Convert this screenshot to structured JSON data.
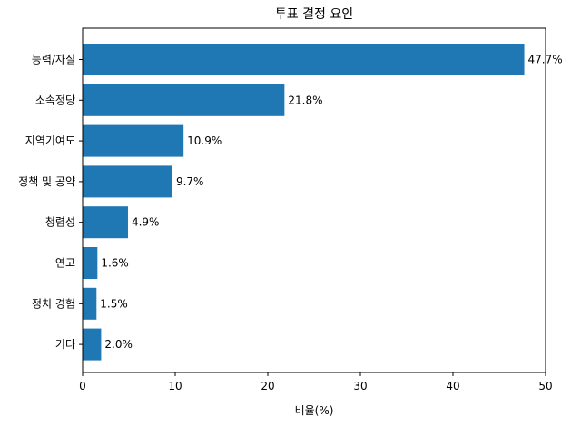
{
  "chart_data": {
    "type": "bar",
    "orientation": "horizontal",
    "title": "투표 결정 요인",
    "xlabel": "비율(%)",
    "ylabel": "",
    "categories": [
      "능력/자질",
      "소속정당",
      "지역기여도",
      "정책 및 공약",
      "청렴성",
      "연고",
      "정치 경험",
      "기타"
    ],
    "values": [
      47.7,
      21.8,
      10.9,
      9.7,
      4.9,
      1.6,
      1.5,
      2.0
    ],
    "data_labels": [
      "47.7%",
      "21.8%",
      "10.9%",
      "9.7%",
      "4.9%",
      "1.6%",
      "1.5%",
      "2.0%"
    ],
    "xlim": [
      0,
      50
    ],
    "xticks": [
      0,
      10,
      20,
      30,
      40,
      50
    ],
    "grid": false,
    "bar_color": "#1f77b4"
  }
}
